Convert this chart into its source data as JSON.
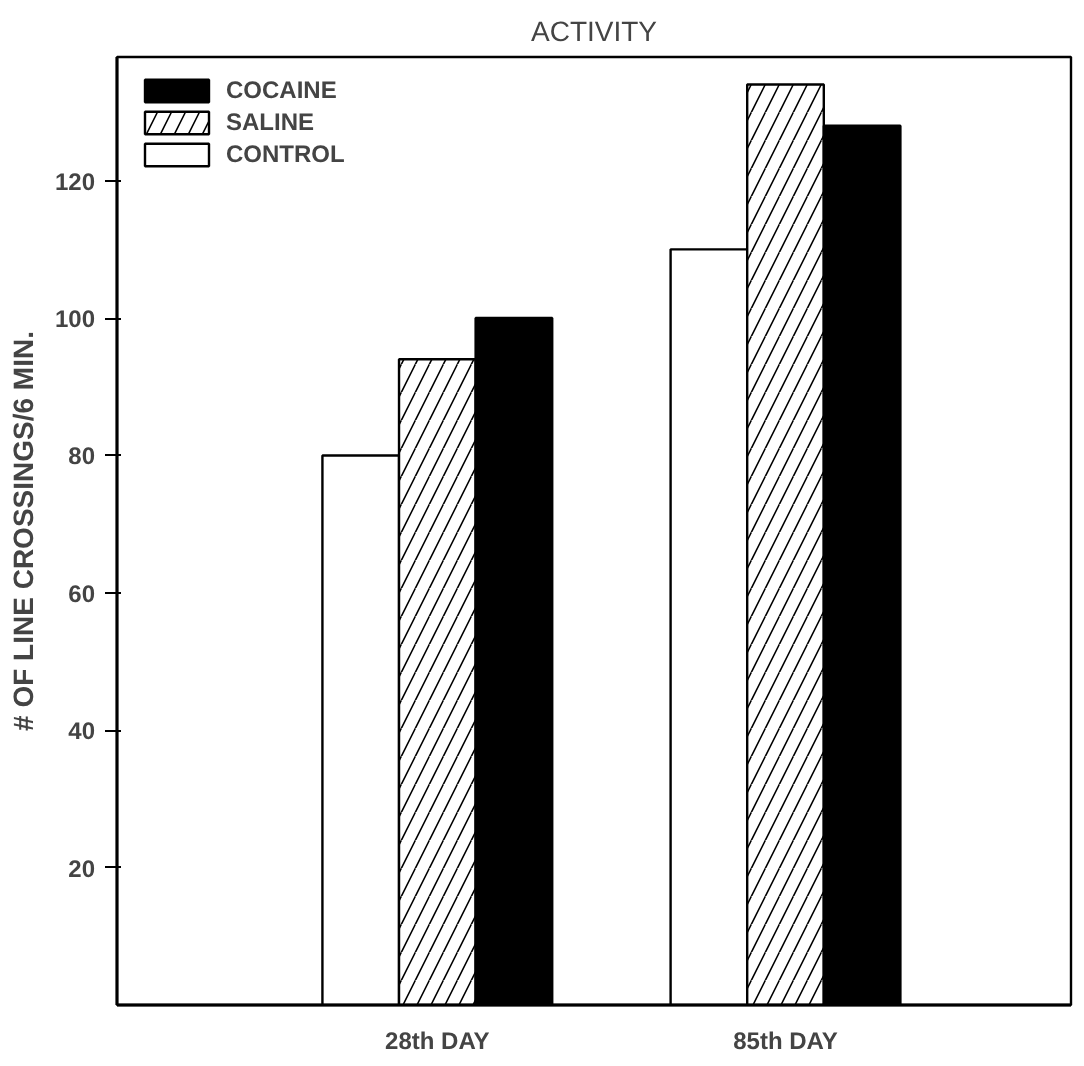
{
  "chart_data": {
    "type": "bar",
    "title": "ACTIVITY",
    "ylabel": "# OF LINE CROSSINGS/6 MIN.",
    "categories": [
      "28th DAY",
      "85th DAY"
    ],
    "series": [
      {
        "name": "CONTROL",
        "color": "#ffffff",
        "values": [
          80,
          110
        ]
      },
      {
        "name": "SALINE",
        "color": "#ffffff",
        "values": [
          94,
          134
        ]
      },
      {
        "name": "COCAINE",
        "color": "#000000",
        "values": [
          100,
          128
        ]
      }
    ],
    "ylim": [
      0,
      138
    ],
    "yticks": [
      20,
      40,
      60,
      80,
      100,
      120
    ],
    "grid": false,
    "legend": "top left"
  }
}
